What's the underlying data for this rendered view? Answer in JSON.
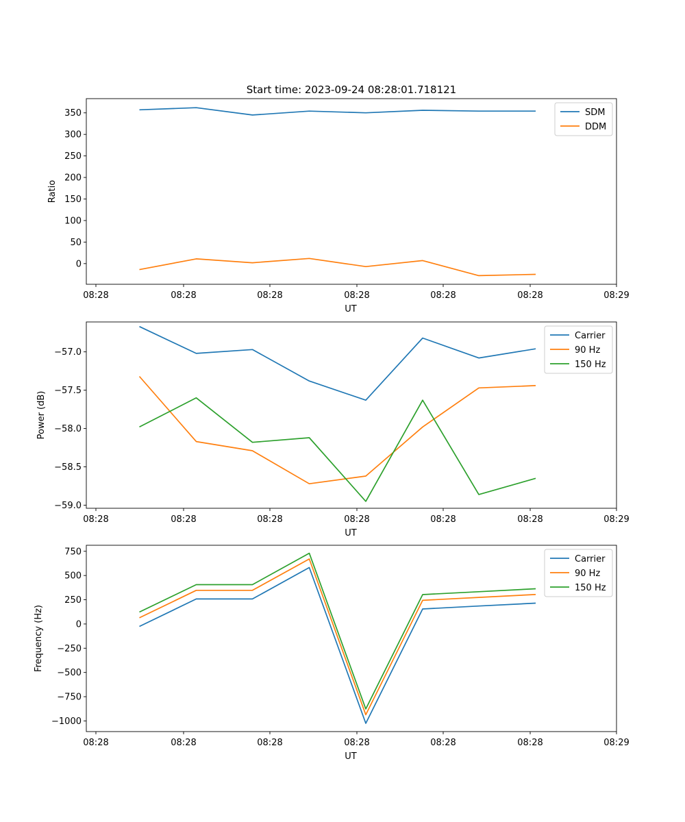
{
  "chart_data": [
    {
      "type": "line",
      "title": "Start time: 2023-09-24 08:28:01.718121",
      "xlabel": "UT",
      "ylabel": "Ratio",
      "x_ticks": [
        "08:28",
        "08:28",
        "08:28",
        "08:28",
        "08:28",
        "08:28",
        "08:29"
      ],
      "y_ticks": [
        350,
        300,
        250,
        200,
        150,
        100,
        50,
        0
      ],
      "ylim": [
        -48,
        383
      ],
      "legend": "top-right",
      "series": [
        {
          "name": "SDM",
          "color": "#1f77b4",
          "values": [
            357,
            362,
            345,
            354,
            350,
            356,
            354,
            354
          ]
        },
        {
          "name": "DDM",
          "color": "#ff7f0e",
          "values": [
            -14,
            11,
            2,
            12,
            -7,
            7,
            -28,
            -25
          ]
        }
      ]
    },
    {
      "type": "line",
      "title": "",
      "xlabel": "UT",
      "ylabel": "Power (dB)",
      "x_ticks": [
        "08:28",
        "08:28",
        "08:28",
        "08:28",
        "08:28",
        "08:28",
        "08:29"
      ],
      "y_ticks": [
        "−57.0",
        "−57.5",
        "−58.0",
        "−58.5",
        "−59.0"
      ],
      "y_tick_values": [
        -57.0,
        -57.5,
        -58.0,
        -58.5,
        -59.0
      ],
      "ylim": [
        -59.04,
        -56.61
      ],
      "legend": "top-right",
      "series": [
        {
          "name": "Carrier",
          "color": "#1f77b4",
          "values": [
            -56.67,
            -57.02,
            -56.97,
            -57.38,
            -57.63,
            -56.82,
            -57.08,
            -56.96
          ]
        },
        {
          "name": "90 Hz",
          "color": "#ff7f0e",
          "values": [
            -57.32,
            -58.17,
            -58.29,
            -58.72,
            -58.62,
            -57.98,
            -57.47,
            -57.44
          ]
        },
        {
          "name": "150 Hz",
          "color": "#2ca02c",
          "values": [
            -57.98,
            -57.6,
            -58.18,
            -58.12,
            -58.95,
            -57.63,
            -58.86,
            -58.65
          ]
        }
      ]
    },
    {
      "type": "line",
      "title": "",
      "xlabel": "UT",
      "ylabel": "Frequency (Hz)",
      "x_ticks": [
        "08:28",
        "08:28",
        "08:28",
        "08:28",
        "08:28",
        "08:28",
        "08:29"
      ],
      "y_ticks": [
        "750",
        "500",
        "250",
        "0",
        "−250",
        "−500",
        "−750",
        "−1000"
      ],
      "y_tick_values": [
        750,
        500,
        250,
        0,
        -250,
        -500,
        -750,
        -1000
      ],
      "ylim": [
        -1110,
        812
      ],
      "legend": "top-right",
      "series": [
        {
          "name": "Carrier",
          "color": "#1f77b4",
          "values": [
            -25,
            258,
            258,
            582,
            -1025,
            155,
            185,
            215
          ]
        },
        {
          "name": "90 Hz",
          "color": "#ff7f0e",
          "values": [
            64,
            347,
            347,
            671,
            -936,
            244,
            274,
            304
          ]
        },
        {
          "name": "150 Hz",
          "color": "#2ca02c",
          "values": [
            123,
            406,
            406,
            730,
            -877,
            303,
            333,
            363
          ]
        }
      ]
    }
  ]
}
